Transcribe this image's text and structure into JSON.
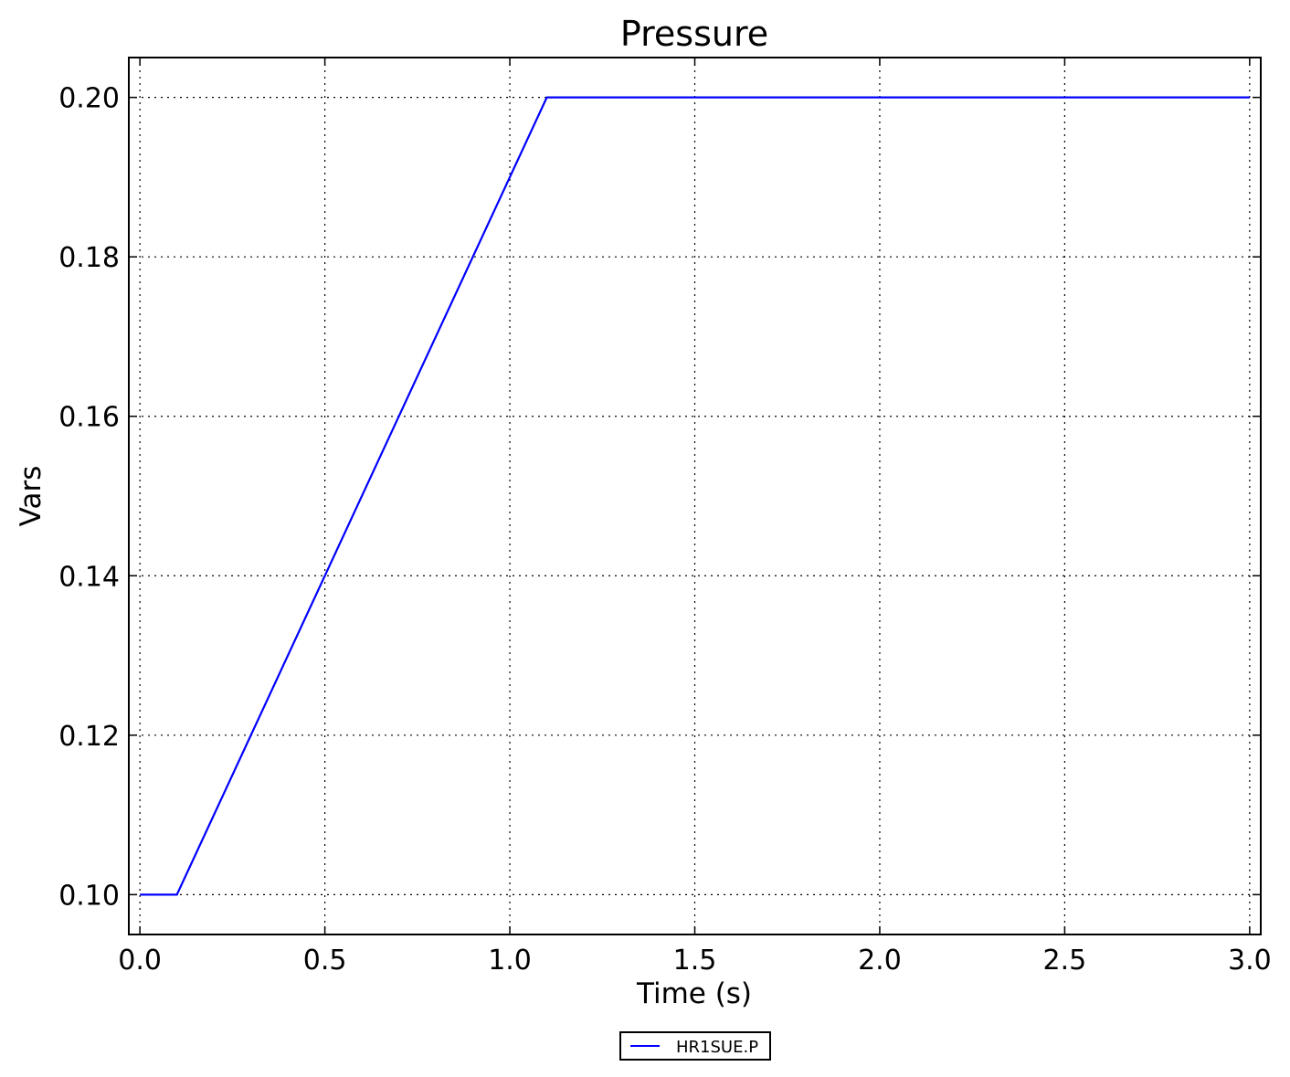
{
  "chart_data": {
    "type": "line",
    "title": "Pressure",
    "xlabel": "Time (s)",
    "ylabel": "Vars",
    "xlim": [
      -0.03,
      3.03
    ],
    "ylim": [
      0.095,
      0.205
    ],
    "xticks": [
      0.0,
      0.5,
      1.0,
      1.5,
      2.0,
      2.5,
      3.0
    ],
    "xtick_labels": [
      "0.0",
      "0.5",
      "1.0",
      "1.5",
      "2.0",
      "2.5",
      "3.0"
    ],
    "yticks": [
      0.1,
      0.12,
      0.14,
      0.16,
      0.18,
      0.2
    ],
    "ytick_labels": [
      "0.10",
      "0.12",
      "0.14",
      "0.16",
      "0.18",
      "0.20"
    ],
    "grid": true,
    "legend_position": "bottom-center",
    "series": [
      {
        "name": "HR1SUE.P",
        "color": "#0000ff",
        "x": [
          0.0,
          0.1,
          1.1,
          3.0
        ],
        "y": [
          0.1,
          0.1,
          0.2,
          0.2
        ]
      }
    ]
  }
}
